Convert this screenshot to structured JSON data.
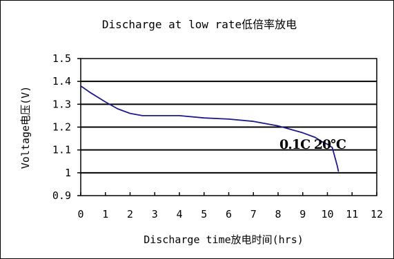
{
  "chart_data": {
    "type": "line",
    "title": "Discharge at low rate低倍率放电",
    "xlabel": "Discharge time放电时间(hrs)",
    "ylabel": "Voltage电压(V)",
    "xlim": [
      0,
      12
    ],
    "ylim": [
      0.9,
      1.5
    ],
    "x_ticks": [
      "0",
      "1",
      "2",
      "3",
      "4",
      "5",
      "6",
      "7",
      "8",
      "9",
      "10",
      "11",
      "12"
    ],
    "y_ticks": [
      "1.5",
      "1.4",
      "1.3",
      "1.2",
      "1.1",
      "1",
      "0.9"
    ],
    "y_tick_values": [
      1.5,
      1.4,
      1.3,
      1.2,
      1.1,
      1.0,
      0.9
    ],
    "grid": "horizontal",
    "legend": "none",
    "series": [
      {
        "color": "#1a1a8c",
        "x": [
          0,
          0.4,
          1.0,
          1.5,
          2.0,
          2.5,
          3.0,
          4.0,
          5.0,
          6.0,
          7.0,
          7.5,
          8.0,
          8.5,
          9.0,
          9.5,
          9.8,
          10.0,
          10.2,
          10.3,
          10.4,
          10.45
        ],
        "y": [
          1.38,
          1.35,
          1.31,
          1.28,
          1.26,
          1.25,
          1.25,
          1.25,
          1.24,
          1.235,
          1.225,
          1.215,
          1.205,
          1.19,
          1.175,
          1.155,
          1.135,
          1.125,
          1.11,
          1.07,
          1.03,
          1.005
        ]
      }
    ],
    "annotations": [
      {
        "text": "0.1C  20℃",
        "x": 9.4,
        "y": 1.105
      }
    ]
  }
}
